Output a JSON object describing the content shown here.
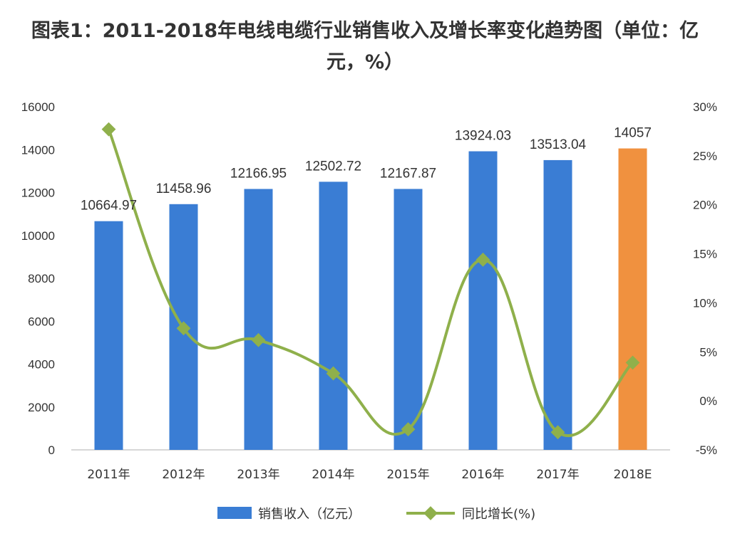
{
  "chart_data": {
    "type": "bar",
    "title": "图表1：2011-2018年电线电缆行业销售收入及增长率变化趋势图（单位：亿元，%）",
    "categories": [
      "2011年",
      "2012年",
      "2013年",
      "2014年",
      "2015年",
      "2016年",
      "2017年",
      "2018E"
    ],
    "series": [
      {
        "name": "销售收入（亿元）",
        "type": "bar",
        "axis": "left",
        "color": "#3a7dd4",
        "highlight_color": "#f0913f",
        "highlight_index": 7,
        "values": [
          10664.97,
          11458.96,
          12166.95,
          12502.72,
          12167.87,
          13924.03,
          13513.04,
          14057
        ],
        "labels": [
          "10664.97",
          "11458.96",
          "12166.95",
          "12502.72",
          "12167.87",
          "13924.03",
          "13513.04",
          "14057"
        ]
      },
      {
        "name": "同比增长(%)",
        "type": "line",
        "axis": "right",
        "color": "#8fb04b",
        "smooth": true,
        "values": [
          27.7,
          7.4,
          6.2,
          2.8,
          -2.9,
          14.4,
          -3.2,
          3.9
        ]
      }
    ],
    "y_left": {
      "ylim": [
        0,
        16000
      ],
      "ticks": [
        "0",
        "2000",
        "4000",
        "6000",
        "8000",
        "10000",
        "12000",
        "14000",
        "16000"
      ]
    },
    "y_right": {
      "ylim": [
        -5,
        30
      ],
      "ticks": [
        "-5%",
        "0%",
        "5%",
        "10%",
        "15%",
        "20%",
        "25%",
        "30%"
      ]
    },
    "legend_position": "bottom",
    "grid": false
  }
}
